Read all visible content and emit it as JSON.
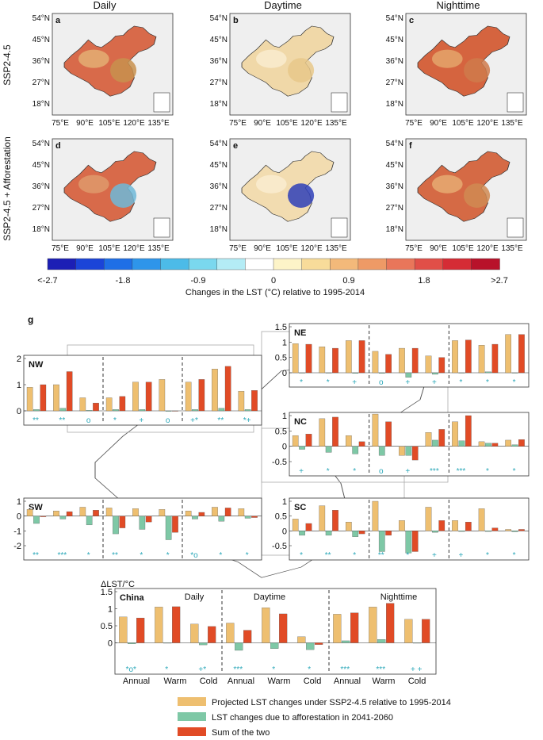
{
  "figure": {
    "columns": [
      "Daily",
      "Daytime",
      "Nighttime"
    ],
    "rows": [
      "SSP2-4.5",
      "SSP2-4.5 + Afforestation"
    ],
    "panel_letters": [
      "a",
      "b",
      "c",
      "d",
      "e",
      "f"
    ],
    "lat_ticks": [
      "54°N",
      "45°N",
      "36°N",
      "27°N",
      "18°N"
    ],
    "lon_ticks": [
      "75°E",
      "90°E",
      "105°E",
      "120°E",
      "135°E"
    ]
  },
  "colorbar": {
    "colors": [
      "#1c1fb5",
      "#1b44d8",
      "#1f6fe6",
      "#2e95ea",
      "#4cbbe8",
      "#7ad8ee",
      "#b4ecf5",
      "#ffffff",
      "#fdf4c8",
      "#f8dc9a",
      "#f3b97a",
      "#ee9a66",
      "#e9765a",
      "#e14f48",
      "#d52c35",
      "#b8122a"
    ],
    "tick_labels": [
      "<-2.7",
      "-1.8",
      "-0.9",
      "0",
      "0.9",
      "1.8",
      ">2.7"
    ],
    "title": "Changes in the LST (°C) relative to 1995-2014"
  },
  "g_label": "g",
  "y_axis_title": "ΔLST/°C",
  "categories": [
    "Annual",
    "Warm",
    "Cold"
  ],
  "periods": [
    "Daily",
    "Daytime",
    "Nighttime"
  ],
  "legend": [
    {
      "label": "Projected LST changes under SSP2-4.5 relative to 1995-2014",
      "color": "#eebf70"
    },
    {
      "label": "LST changes due to afforestation in 2041-2060",
      "color": "#7ec8a6"
    },
    {
      "label": "Sum of the two",
      "color": "#e14b26"
    }
  ],
  "chart_data": [
    {
      "type": "bar",
      "region": "NW",
      "ylim": [
        0,
        2
      ],
      "yticks": [
        "0",
        "1",
        "2"
      ],
      "series": [
        {
          "name": "Projected",
          "values": [
            0.9,
            1.0,
            0.5,
            0.5,
            1.1,
            1.2,
            1.1,
            1.6,
            0.75
          ]
        },
        {
          "name": "Afforestation",
          "values": [
            0.05,
            0.1,
            0.02,
            0.05,
            0.05,
            -0.02,
            0.05,
            0.1,
            0.05
          ]
        },
        {
          "name": "Sum",
          "values": [
            1.0,
            1.5,
            0.3,
            0.55,
            1.1,
            0.0,
            1.2,
            1.7,
            0.78
          ]
        }
      ],
      "markers": [
        "**",
        "**",
        "o",
        "*",
        "+",
        "o",
        "+*",
        "**",
        "*+"
      ]
    },
    {
      "type": "bar",
      "region": "NE",
      "ylim": [
        0,
        1.5
      ],
      "yticks": [
        "0",
        "0.5",
        "1",
        "1.5"
      ],
      "series": [
        {
          "name": "Projected",
          "values": [
            0.95,
            0.85,
            1.05,
            0.7,
            0.8,
            0.55,
            1.05,
            0.9,
            1.25
          ]
        },
        {
          "name": "Afforestation",
          "values": [
            0.0,
            0.0,
            -0.02,
            -0.02,
            -0.15,
            -0.05,
            0.0,
            0.03,
            0.0
          ]
        },
        {
          "name": "Sum",
          "values": [
            0.93,
            0.8,
            1.05,
            0.6,
            0.8,
            0.5,
            1.07,
            0.93,
            1.25
          ]
        }
      ],
      "markers": [
        "*",
        "*",
        "+",
        "o",
        "+",
        "+",
        "*",
        "*",
        "*"
      ]
    },
    {
      "type": "bar",
      "region": "NC",
      "ylim": [
        -0.5,
        1
      ],
      "yticks": [
        "-0.5",
        "0",
        "0.5",
        "1"
      ],
      "series": [
        {
          "name": "Projected",
          "values": [
            0.35,
            0.9,
            0.35,
            1.05,
            -0.3,
            0.45,
            0.8,
            0.15,
            0.2
          ]
        },
        {
          "name": "Afforestation",
          "values": [
            -0.1,
            -0.2,
            -0.25,
            -0.3,
            -0.3,
            0.2,
            0.18,
            0.1,
            0.05
          ]
        },
        {
          "name": "Sum",
          "values": [
            0.4,
            0.95,
            0.15,
            0.8,
            -0.45,
            0.55,
            1.0,
            0.1,
            0.22
          ]
        }
      ],
      "markers": [
        "+",
        "*",
        "*",
        "o",
        "+",
        "***",
        "***",
        "*",
        "*"
      ]
    },
    {
      "type": "bar",
      "region": "SW",
      "ylim": [
        -2,
        1
      ],
      "yticks": [
        "-2",
        "-1",
        "0",
        "1"
      ],
      "series": [
        {
          "name": "Projected",
          "values": [
            0.45,
            0.35,
            0.6,
            0.55,
            0.5,
            0.45,
            0.35,
            0.6,
            0.5
          ]
        },
        {
          "name": "Afforestation",
          "values": [
            -0.5,
            -0.2,
            -0.6,
            -1.2,
            -0.9,
            -1.6,
            -0.2,
            -0.35,
            -0.15
          ]
        },
        {
          "name": "Sum",
          "values": [
            -0.05,
            0.3,
            0.4,
            -0.8,
            -0.4,
            -1.1,
            0.25,
            0.55,
            -0.1
          ]
        }
      ],
      "markers": [
        "**",
        "***",
        "*",
        "**",
        "*",
        "*",
        "*o",
        "*",
        "*"
      ]
    },
    {
      "type": "bar",
      "region": "SC",
      "ylim": [
        -0.5,
        1
      ],
      "yticks": [
        "-0.5",
        "0",
        "0.5",
        "1"
      ],
      "series": [
        {
          "name": "Projected",
          "values": [
            0.4,
            0.85,
            0.3,
            1.0,
            0.35,
            0.8,
            0.35,
            0.75,
            0.05
          ]
        },
        {
          "name": "Afforestation",
          "values": [
            -0.15,
            -0.15,
            -0.2,
            -0.7,
            -0.75,
            -0.05,
            -0.02,
            -0.02,
            -0.03
          ]
        },
        {
          "name": "Sum",
          "values": [
            0.25,
            0.7,
            -0.1,
            -0.15,
            -0.7,
            0.35,
            0.3,
            0.1,
            0.05
          ]
        }
      ],
      "markers": [
        "*",
        "**",
        "*",
        "**",
        "*",
        "+",
        "+",
        "*",
        "*"
      ]
    },
    {
      "type": "bar",
      "region": "China",
      "ylim": [
        -0.5,
        1.5
      ],
      "yticks": [
        "0",
        "0.5",
        "1",
        "1.5"
      ],
      "series": [
        {
          "name": "Projected",
          "values": [
            0.76,
            1.05,
            0.55,
            0.58,
            1.03,
            0.18,
            0.84,
            1.05,
            0.69
          ]
        },
        {
          "name": "Afforestation",
          "values": [
            -0.03,
            0.0,
            -0.06,
            -0.22,
            -0.17,
            -0.2,
            0.06,
            0.1,
            0.0
          ]
        },
        {
          "name": "Sum",
          "values": [
            0.73,
            1.06,
            0.48,
            0.37,
            0.85,
            -0.05,
            0.88,
            1.16,
            0.69
          ]
        }
      ],
      "markers": [
        "*o*",
        "*",
        "+*",
        "***",
        "*",
        "*",
        "***",
        "***",
        "+ +"
      ]
    }
  ]
}
